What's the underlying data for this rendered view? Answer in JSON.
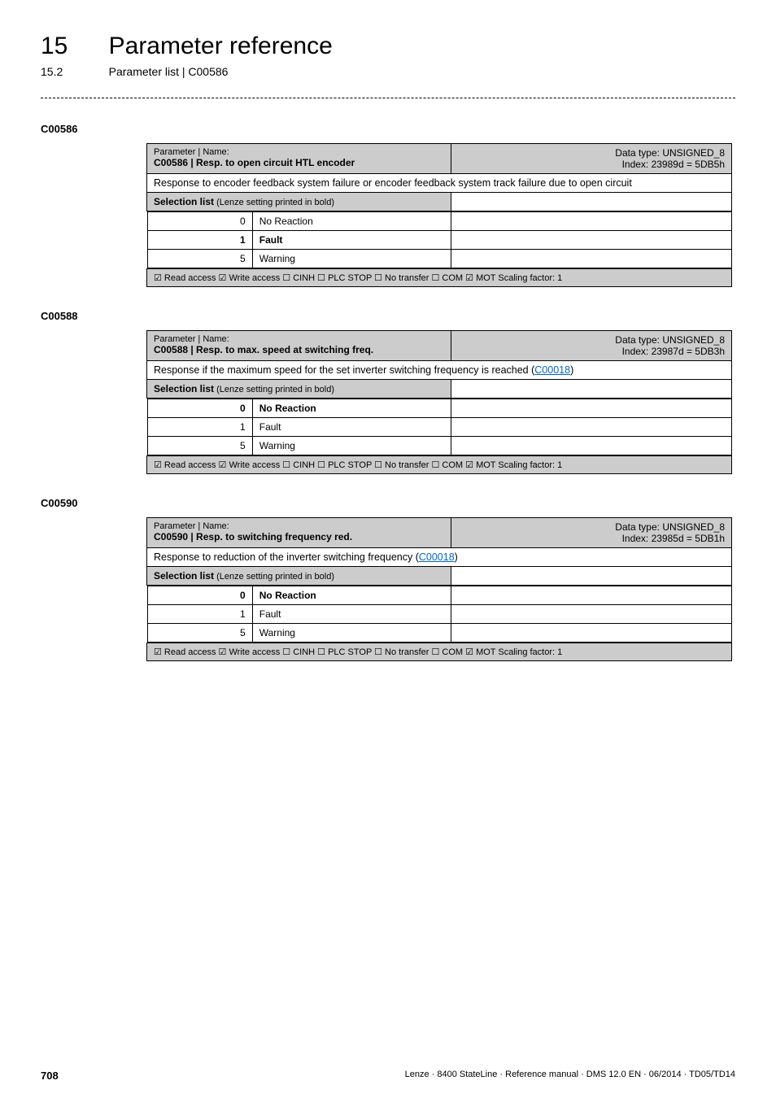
{
  "header": {
    "chapter_num": "15",
    "chapter_title": "Parameter reference",
    "sub_num": "15.2",
    "sub_title": "Parameter list | C00586"
  },
  "params": [
    {
      "id": "C00586",
      "name_label": "Parameter | Name:",
      "name_value": "C00586 | Resp. to open circuit HTL encoder",
      "datatype_line1": "Data type: UNSIGNED_8",
      "datatype_line2": "Index: 23989d = 5DB5h",
      "description": "Response to encoder feedback system failure or encoder feedback system track failure due to open circuit",
      "description_has_link": false,
      "sel_list_label": "Selection list",
      "sel_list_sub": " (Lenze setting printed in bold)",
      "rows": [
        {
          "val": "0",
          "label": "No Reaction",
          "bold": false
        },
        {
          "val": "1",
          "label": "Fault",
          "bold": true
        },
        {
          "val": "5",
          "label": "Warning",
          "bold": false
        }
      ],
      "footer": {
        "read": "☑ Read access",
        "write": "☑ Write access",
        "cinh": "☐ CINH",
        "plc": "☐ PLC STOP",
        "notr": "☐ No transfer",
        "com": "☐ COM",
        "mot": "☑ MOT",
        "scaling": "Scaling factor: 1"
      }
    },
    {
      "id": "C00588",
      "name_label": "Parameter | Name:",
      "name_value": "C00588 | Resp. to max. speed at switching freq.",
      "datatype_line1": "Data type: UNSIGNED_8",
      "datatype_line2": "Index: 23987d = 5DB3h",
      "description_prefix": "Response if the maximum speed for the set inverter switching frequency is reached (",
      "description_link": "C00018",
      "description_suffix": ")",
      "description_has_link": true,
      "sel_list_label": "Selection list",
      "sel_list_sub": " (Lenze setting printed in bold)",
      "rows": [
        {
          "val": "0",
          "label": "No Reaction",
          "bold": true
        },
        {
          "val": "1",
          "label": "Fault",
          "bold": false
        },
        {
          "val": "5",
          "label": "Warning",
          "bold": false
        }
      ],
      "footer": {
        "read": "☑ Read access",
        "write": "☑ Write access",
        "cinh": "☐ CINH",
        "plc": "☐ PLC STOP",
        "notr": "☐ No transfer",
        "com": "☐ COM",
        "mot": "☑ MOT",
        "scaling": "Scaling factor: 1"
      }
    },
    {
      "id": "C00590",
      "name_label": "Parameter | Name:",
      "name_value": "C00590 | Resp. to switching frequency red.",
      "datatype_line1": "Data type: UNSIGNED_8",
      "datatype_line2": "Index: 23985d = 5DB1h",
      "description_prefix": "Response to reduction of the inverter switching frequency (",
      "description_link": "C00018",
      "description_suffix": ")",
      "description_has_link": true,
      "sel_list_label": "Selection list",
      "sel_list_sub": " (Lenze setting printed in bold)",
      "rows": [
        {
          "val": "0",
          "label": "No Reaction",
          "bold": true
        },
        {
          "val": "1",
          "label": "Fault",
          "bold": false
        },
        {
          "val": "5",
          "label": "Warning",
          "bold": false
        }
      ],
      "footer": {
        "read": "☑ Read access",
        "write": "☑ Write access",
        "cinh": "☐ CINH",
        "plc": "☐ PLC STOP",
        "notr": "☐ No transfer",
        "com": "☐ COM",
        "mot": "☑ MOT",
        "scaling": "Scaling factor: 1"
      }
    }
  ],
  "footer": {
    "page": "708",
    "doc": "Lenze · 8400 StateLine · Reference manual · DMS 12.0 EN · 06/2014 · TD05/TD14"
  }
}
